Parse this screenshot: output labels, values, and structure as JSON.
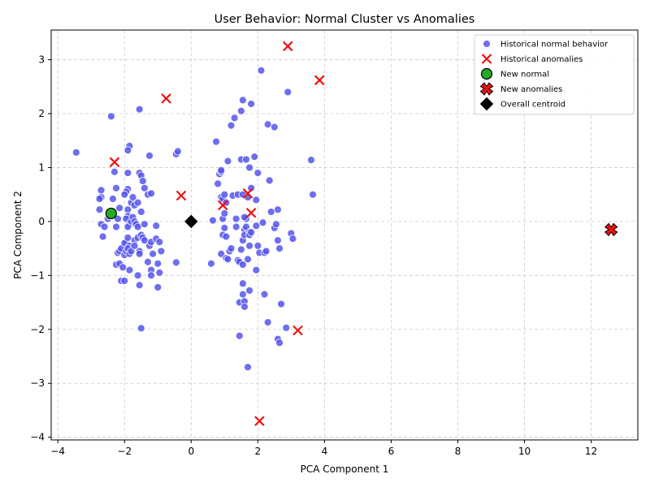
{
  "chart_data": {
    "type": "scatter",
    "title": "User Behavior: Normal Cluster vs Anomalies",
    "xlabel": "PCA Component 1",
    "ylabel": "PCA Component 2",
    "xlim": [
      -4.2,
      13.4
    ],
    "ylim": [
      -4.05,
      3.55
    ],
    "xticks": [
      -4,
      -2,
      0,
      2,
      4,
      6,
      8,
      10,
      12
    ],
    "yticks": [
      -4,
      -3,
      -2,
      -1,
      0,
      1,
      2,
      3
    ],
    "grid": true,
    "legend_position": "top-right",
    "colors": {
      "normal": "#5555ee",
      "anomaly": "#ee1111",
      "new_normal": "#22aa22",
      "centroid": "#000000"
    },
    "series": [
      {
        "name": "Historical normal behavior",
        "marker": "circle",
        "color": "#5555ee",
        "points": [
          [
            -3.45,
            1.28
          ],
          [
            -2.4,
            1.95
          ],
          [
            -2.75,
            0.22
          ],
          [
            -2.7,
            0.58
          ],
          [
            -2.7,
            0.45
          ],
          [
            -2.75,
            0.42
          ],
          [
            -2.7,
            -0.05
          ],
          [
            -2.65,
            -0.28
          ],
          [
            -2.6,
            -0.1
          ],
          [
            -2.5,
            0.05
          ],
          [
            -2.45,
            0.1
          ],
          [
            -2.35,
            0.42
          ],
          [
            -2.3,
            0.92
          ],
          [
            -2.25,
            0.62
          ],
          [
            -2.2,
            0.05
          ],
          [
            -2.25,
            -0.1
          ],
          [
            -2.15,
            0.25
          ],
          [
            -2.2,
            -0.58
          ],
          [
            -2.15,
            -0.55
          ],
          [
            -2.1,
            -0.5
          ],
          [
            -2.25,
            -0.8
          ],
          [
            -2.15,
            -0.78
          ],
          [
            -2.1,
            -1.1
          ],
          [
            -2.0,
            -1.1
          ],
          [
            -2.05,
            -0.85
          ],
          [
            -2.0,
            -0.62
          ],
          [
            -1.95,
            -0.55
          ],
          [
            -1.95,
            -0.38
          ],
          [
            -2.0,
            -0.4
          ],
          [
            -1.9,
            0.9
          ],
          [
            -1.9,
            0.6
          ],
          [
            -1.95,
            0.55
          ],
          [
            -2.0,
            0.5
          ],
          [
            -1.9,
            0.22
          ],
          [
            -1.9,
            0.1
          ],
          [
            -1.95,
            0.05
          ],
          [
            -1.85,
            -0.05
          ],
          [
            -1.9,
            -0.1
          ],
          [
            -1.9,
            -0.3
          ],
          [
            -1.85,
            -0.45
          ],
          [
            -1.9,
            -0.5
          ],
          [
            -1.85,
            -0.6
          ],
          [
            -1.85,
            -0.9
          ],
          [
            -1.8,
            0.35
          ],
          [
            -1.8,
            0.0
          ],
          [
            -1.75,
            0.08
          ],
          [
            -1.8,
            -0.55
          ],
          [
            -1.85,
            1.4
          ],
          [
            -1.9,
            1.32
          ],
          [
            -1.75,
            0.45
          ],
          [
            -1.7,
            0.3
          ],
          [
            -1.7,
            0.0
          ],
          [
            -1.65,
            -0.05
          ],
          [
            -1.7,
            -0.35
          ],
          [
            -1.7,
            -0.45
          ],
          [
            -1.6,
            -0.1
          ],
          [
            -1.6,
            0.35
          ],
          [
            -1.55,
            0.9
          ],
          [
            -1.5,
            0.85
          ],
          [
            -1.45,
            0.75
          ],
          [
            -1.4,
            0.62
          ],
          [
            -1.5,
            0.18
          ],
          [
            -1.6,
            -0.3
          ],
          [
            -1.55,
            -0.55
          ],
          [
            -1.55,
            -0.6
          ],
          [
            -1.5,
            -0.25
          ],
          [
            -1.45,
            -0.3
          ],
          [
            -1.4,
            -0.35
          ],
          [
            -1.4,
            -0.05
          ],
          [
            -1.3,
            0.5
          ],
          [
            -1.2,
            0.52
          ],
          [
            -1.25,
            1.22
          ],
          [
            -1.55,
            2.08
          ],
          [
            -1.6,
            -1.0
          ],
          [
            -1.55,
            -1.18
          ],
          [
            -1.5,
            -1.98
          ],
          [
            -1.3,
            -0.75
          ],
          [
            -1.25,
            -0.45
          ],
          [
            -1.2,
            -0.38
          ],
          [
            -1.15,
            -0.6
          ],
          [
            -1.2,
            -0.9
          ],
          [
            -1.2,
            -1.0
          ],
          [
            -1.05,
            -0.32
          ],
          [
            -1.05,
            -0.08
          ],
          [
            -1.0,
            -0.78
          ],
          [
            -0.95,
            -0.38
          ],
          [
            -0.9,
            -0.55
          ],
          [
            -0.95,
            -0.95
          ],
          [
            -1.0,
            -1.22
          ],
          [
            -0.45,
            1.25
          ],
          [
            -0.4,
            1.3
          ],
          [
            -0.45,
            -0.76
          ],
          [
            0.65,
            0.02
          ],
          [
            0.6,
            -0.78
          ],
          [
            0.75,
            1.48
          ],
          [
            0.8,
            0.7
          ],
          [
            0.85,
            0.88
          ],
          [
            0.9,
            0.92
          ],
          [
            0.9,
            0.95
          ],
          [
            0.9,
            0.45
          ],
          [
            0.95,
            0.42
          ],
          [
            0.95,
            0.05
          ],
          [
            1.0,
            0.15
          ],
          [
            1.0,
            0.5
          ],
          [
            1.05,
            0.35
          ],
          [
            0.95,
            -0.25
          ],
          [
            1.0,
            -0.12
          ],
          [
            1.05,
            -0.28
          ],
          [
            0.9,
            -0.6
          ],
          [
            1.05,
            -0.68
          ],
          [
            1.1,
            -0.7
          ],
          [
            1.15,
            -0.55
          ],
          [
            1.2,
            -0.5
          ],
          [
            1.1,
            1.12
          ],
          [
            1.2,
            1.78
          ],
          [
            1.3,
            1.92
          ],
          [
            1.25,
            0.48
          ],
          [
            1.35,
            -0.1
          ],
          [
            1.35,
            0.05
          ],
          [
            1.4,
            0.5
          ],
          [
            1.4,
            -0.72
          ],
          [
            1.45,
            -0.75
          ],
          [
            1.45,
            -1.5
          ],
          [
            1.45,
            -2.12
          ],
          [
            1.5,
            -0.52
          ],
          [
            1.5,
            1.15
          ],
          [
            1.5,
            2.05
          ],
          [
            1.55,
            2.25
          ],
          [
            1.55,
            0.5
          ],
          [
            1.55,
            -0.8
          ],
          [
            1.55,
            -1.15
          ],
          [
            1.55,
            -1.35
          ],
          [
            1.6,
            -1.48
          ],
          [
            1.6,
            -1.58
          ],
          [
            1.55,
            -0.35
          ],
          [
            1.6,
            -0.15
          ],
          [
            1.6,
            -0.25
          ],
          [
            1.65,
            -0.1
          ],
          [
            1.65,
            0.05
          ],
          [
            1.6,
            0.08
          ],
          [
            1.65,
            1.15
          ],
          [
            1.7,
            0.45
          ],
          [
            1.7,
            -0.7
          ],
          [
            1.7,
            -2.7
          ],
          [
            1.75,
            -1.28
          ],
          [
            1.75,
            -0.2
          ],
          [
            1.75,
            -0.25
          ],
          [
            1.8,
            -0.2
          ],
          [
            1.75,
            -0.45
          ],
          [
            1.8,
            2.18
          ],
          [
            1.75,
            1.0
          ],
          [
            1.8,
            0.62
          ],
          [
            1.9,
            1.2
          ],
          [
            1.95,
            0.4
          ],
          [
            1.95,
            -0.08
          ],
          [
            1.95,
            -0.9
          ],
          [
            2.0,
            0.9
          ],
          [
            2.0,
            -0.45
          ],
          [
            2.05,
            -0.58
          ],
          [
            2.1,
            2.8
          ],
          [
            2.15,
            -0.02
          ],
          [
            2.2,
            -1.35
          ],
          [
            2.2,
            -0.58
          ],
          [
            2.25,
            -0.55
          ],
          [
            2.3,
            1.8
          ],
          [
            2.3,
            -1.87
          ],
          [
            2.35,
            0.76
          ],
          [
            2.4,
            0.18
          ],
          [
            2.5,
            1.75
          ],
          [
            2.5,
            -0.12
          ],
          [
            2.55,
            -0.05
          ],
          [
            2.6,
            0.22
          ],
          [
            2.6,
            -0.35
          ],
          [
            2.65,
            -0.5
          ],
          [
            2.6,
            -2.18
          ],
          [
            2.65,
            -2.25
          ],
          [
            2.7,
            -1.53
          ],
          [
            2.85,
            -1.97
          ],
          [
            2.9,
            2.4
          ],
          [
            3.0,
            -0.22
          ],
          [
            3.05,
            -0.32
          ],
          [
            3.6,
            1.14
          ],
          [
            3.65,
            0.5
          ]
        ]
      },
      {
        "name": "Historical anomalies",
        "marker": "x",
        "color": "#ee1111",
        "points": [
          [
            -2.3,
            1.1
          ],
          [
            -0.75,
            2.28
          ],
          [
            -0.3,
            0.48
          ],
          [
            0.95,
            0.3
          ],
          [
            1.7,
            0.52
          ],
          [
            1.8,
            0.16
          ],
          [
            2.9,
            3.25
          ],
          [
            3.85,
            2.62
          ],
          [
            3.2,
            -2.02
          ],
          [
            2.05,
            -3.7
          ]
        ]
      },
      {
        "name": "New normal",
        "marker": "circle-large",
        "color": "#22aa22",
        "points": [
          [
            -2.4,
            0.15
          ]
        ]
      },
      {
        "name": "New anomalies",
        "marker": "x-filled",
        "color": "#ee1111",
        "points": [
          [
            12.6,
            -0.15
          ]
        ]
      },
      {
        "name": "Overall centroid",
        "marker": "diamond",
        "color": "#000000",
        "points": [
          [
            0.0,
            0.0
          ]
        ]
      }
    ]
  }
}
